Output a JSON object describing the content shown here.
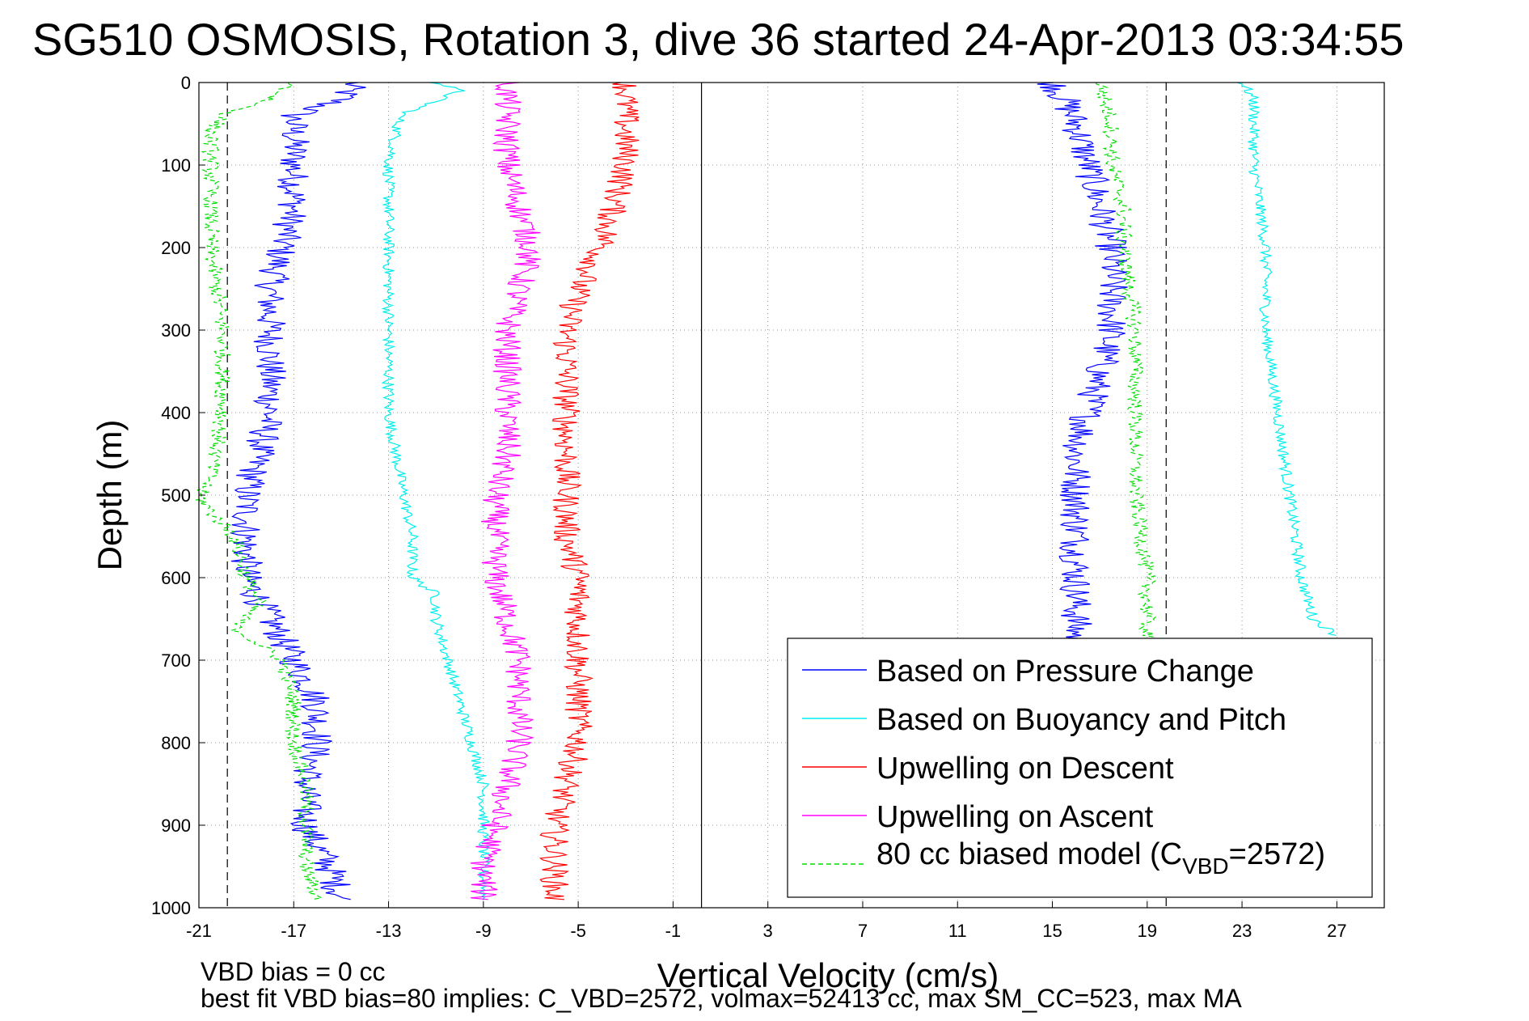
{
  "chart_data": {
    "type": "line",
    "title": "SG510 OSMOSIS, Rotation 3, dive 36 started 24-Apr-2013 03:34:55",
    "xlabel": "Vertical Velocity (cm/s)",
    "ylabel": "Depth (m)",
    "xlim": [
      -21,
      29
    ],
    "ylim": [
      1000,
      0
    ],
    "y_reversed": true,
    "grid": true,
    "legend_placement": "bottom-right",
    "xticks": [
      -21,
      -17,
      -13,
      -9,
      -5,
      -1,
      3,
      7,
      11,
      15,
      19,
      23,
      27
    ],
    "yticks": [
      0,
      100,
      200,
      300,
      400,
      500,
      600,
      700,
      800,
      900,
      1000
    ],
    "reference_lines": {
      "dashed_x": [
        -19.8,
        19.8
      ],
      "solid_x": [
        0.2
      ]
    },
    "series": [
      {
        "name": "Based on Pressure Change",
        "color": "#0000ff",
        "style": "solid",
        "noise": 0.7,
        "descent": {
          "depth": [
            0,
            20,
            40,
            60,
            100,
            150,
            200,
            250,
            300,
            350,
            400,
            450,
            500,
            550,
            600,
            650,
            700,
            750,
            800,
            850,
            900,
            950,
            990
          ],
          "velocity": [
            -14.5,
            -15,
            -17,
            -17,
            -17,
            -17,
            -17.5,
            -18,
            -18,
            -18,
            -18,
            -18.5,
            -19,
            -19,
            -19,
            -18,
            -17,
            -16,
            -16,
            -16.5,
            -16.5,
            -15.5,
            -15
          ]
        },
        "ascent": {
          "depth": [
            0,
            20,
            50,
            100,
            150,
            200,
            250,
            300,
            350,
            400,
            450,
            500,
            550,
            600,
            650,
            680
          ],
          "velocity": [
            15,
            15.5,
            16,
            16.5,
            17,
            17.5,
            17.5,
            17.5,
            17,
            16.5,
            16,
            16,
            16,
            16,
            16,
            16
          ]
        }
      },
      {
        "name": "Based on Buoyancy and Pitch",
        "color": "#00eeee",
        "style": "solid",
        "noise": 0.25,
        "descent": {
          "depth": [
            0,
            10,
            40,
            100,
            200,
            300,
            400,
            480,
            550,
            600,
            620,
            650,
            700,
            750,
            800,
            850,
            900,
            950,
            990
          ],
          "velocity": [
            -11,
            -10,
            -12.5,
            -13,
            -13,
            -13,
            -13,
            -12.5,
            -12,
            -12,
            -11,
            -11,
            -10.5,
            -10,
            -9.5,
            -9,
            -9,
            -9,
            -9
          ]
        },
        "ascent": {
          "depth": [
            0,
            20,
            100,
            200,
            300,
            400,
            500,
            600,
            650,
            670
          ],
          "velocity": [
            23,
            23.5,
            23.5,
            24,
            24,
            24.5,
            25,
            25.5,
            26,
            27
          ]
        }
      },
      {
        "name": "Upwelling on Descent",
        "color": "#ff0000",
        "style": "solid",
        "noise": 0.6,
        "descent": {
          "depth": [
            0,
            50,
            100,
            150,
            200,
            250,
            300,
            350,
            400,
            450,
            500,
            550,
            600,
            650,
            700,
            750,
            800,
            850,
            900,
            950,
            990
          ],
          "velocity": [
            -3,
            -3,
            -3,
            -3.5,
            -4,
            -5,
            -5.5,
            -5.5,
            -5.5,
            -5.5,
            -5.5,
            -5.5,
            -5,
            -5,
            -5,
            -5,
            -5,
            -5.5,
            -6,
            -6,
            -6
          ]
        }
      },
      {
        "name": "Upwelling on Ascent",
        "color": "#ff00ff",
        "style": "solid",
        "noise": 0.6,
        "descent": {
          "depth": [
            0,
            50,
            100,
            150,
            200,
            250,
            300,
            350,
            400,
            450,
            500,
            550,
            600,
            650,
            700,
            750,
            800,
            850,
            900,
            950,
            990
          ],
          "velocity": [
            -8,
            -8,
            -8,
            -7.5,
            -7,
            -7.5,
            -8,
            -8,
            -8,
            -8,
            -8.5,
            -8.5,
            -8.5,
            -8,
            -7.5,
            -7.5,
            -7.5,
            -8,
            -8.5,
            -9,
            -9
          ]
        }
      },
      {
        "name": "80 cc biased model (C_VBD=2572)",
        "color": "#00dd00",
        "style": "dashed",
        "noise": 0.35,
        "descent": {
          "depth": [
            0,
            20,
            40,
            60,
            100,
            150,
            200,
            300,
            400,
            480,
            500,
            520,
            550,
            600,
            630,
            660,
            700,
            750,
            800,
            850,
            900,
            950,
            990
          ],
          "velocity": [
            -17,
            -18,
            -20,
            -20.5,
            -20.5,
            -20.5,
            -20.5,
            -20,
            -20,
            -20.5,
            -21,
            -20.5,
            -19.5,
            -19,
            -18.5,
            -19.5,
            -17.5,
            -17,
            -17,
            -16.5,
            -16.5,
            -16.5,
            -16
          ]
        },
        "ascent": {
          "depth": [
            0,
            50,
            100,
            150,
            200,
            300,
            400,
            500,
            600,
            680
          ],
          "velocity": [
            17,
            17.5,
            17.5,
            18,
            18,
            18.5,
            18.5,
            18.5,
            19,
            19
          ]
        }
      }
    ],
    "legend_entries": [
      {
        "label": "Based on Pressure Change",
        "color": "#0000ff",
        "style": "solid"
      },
      {
        "label": "Based on Buoyancy and Pitch",
        "color": "#00eeee",
        "style": "solid"
      },
      {
        "label": "Upwelling on Descent",
        "color": "#ff0000",
        "style": "solid"
      },
      {
        "label": "Upwelling on Ascent",
        "color": "#ff00ff",
        "style": "solid"
      },
      {
        "label_main": "80 cc biased model (C",
        "label_sub": "VBD",
        "label_tail": "=2572)",
        "color": "#00dd00",
        "style": "dashed"
      }
    ],
    "annotations": {
      "vbd_bias": "VBD bias = 0 cc",
      "best_fit": "best fit VBD bias=80 implies: C_VBD=2572, volmax=52413 cc, max SM_CC=523, max MA"
    }
  }
}
